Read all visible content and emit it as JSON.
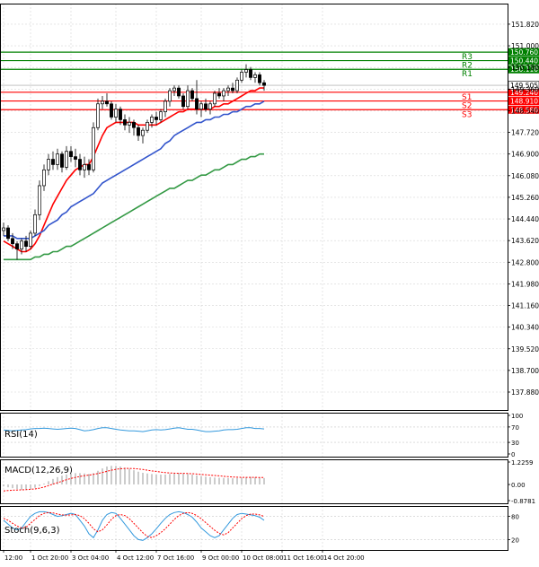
{
  "chart_data": {
    "type": "candlestick",
    "price_axis": {
      "ylim": [
        137.2,
        152.6
      ],
      "ticks": [
        "151.820",
        "151.000",
        "150.180",
        "149.360",
        "148.540",
        "147.720",
        "146.900",
        "146.080",
        "145.260",
        "144.440",
        "143.620",
        "142.800",
        "141.980",
        "141.160",
        "140.340",
        "139.520",
        "138.700",
        "137.880"
      ],
      "tick_values": [
        151.82,
        151.0,
        150.18,
        149.36,
        148.54,
        147.72,
        146.9,
        146.08,
        145.26,
        144.44,
        143.62,
        142.8,
        141.98,
        141.16,
        140.34,
        139.52,
        138.7,
        137.88
      ],
      "grid": true
    },
    "time_axis": {
      "labels": [
        "12:00",
        "1 Oct 20:00",
        "3 Oct 04:00",
        "4 Oct 12:00",
        "7 Oct 16:00",
        "9 Oct 00:00",
        "10 Oct 08:00",
        "11 Oct 16:00",
        "14 Oct 20:00"
      ],
      "label_bar_index": [
        0,
        6,
        15,
        25,
        34,
        44,
        53,
        62,
        71
      ]
    },
    "levels": [
      {
        "name": "R3",
        "value": 150.76,
        "label": "150.760",
        "color": "#008000"
      },
      {
        "name": "R2",
        "value": 150.44,
        "label": "150.440",
        "color": "#008000"
      },
      {
        "name": "R1",
        "value": 150.11,
        "label": "150.110",
        "color": "#008000"
      },
      {
        "name": "S1",
        "value": 149.24,
        "label": "149.240",
        "color": "#ff0000"
      },
      {
        "name": "S2",
        "value": 148.91,
        "label": "148.910",
        "color": "#ff0000"
      },
      {
        "name": "S3",
        "value": 148.58,
        "label": "148.580",
        "color": "#ff0000"
      }
    ],
    "current_price": {
      "value": 149.505,
      "label": "149.505"
    },
    "candles": [
      [
        144.0,
        144.3,
        143.8,
        144.1
      ],
      [
        144.1,
        144.2,
        143.6,
        143.7
      ],
      [
        143.7,
        143.9,
        143.3,
        143.5
      ],
      [
        143.5,
        143.6,
        142.9,
        143.3
      ],
      [
        143.3,
        143.7,
        143.1,
        143.6
      ],
      [
        143.6,
        143.8,
        143.2,
        143.4
      ],
      [
        143.4,
        144.0,
        143.3,
        143.9
      ],
      [
        143.9,
        144.8,
        143.8,
        144.6
      ],
      [
        144.6,
        145.9,
        144.4,
        145.7
      ],
      [
        145.7,
        146.5,
        145.5,
        146.3
      ],
      [
        146.3,
        146.9,
        146.1,
        146.7
      ],
      [
        146.7,
        147.0,
        146.3,
        146.5
      ],
      [
        146.5,
        147.1,
        146.3,
        146.9
      ],
      [
        146.9,
        147.0,
        146.2,
        146.4
      ],
      [
        146.4,
        147.2,
        146.3,
        147.0
      ],
      [
        147.0,
        147.2,
        146.6,
        146.8
      ],
      [
        146.8,
        147.1,
        146.4,
        146.7
      ],
      [
        146.7,
        146.9,
        146.1,
        146.3
      ],
      [
        146.3,
        146.8,
        146.0,
        146.5
      ],
      [
        146.5,
        146.7,
        146.1,
        146.3
      ],
      [
        146.3,
        148.1,
        146.2,
        147.9
      ],
      [
        147.9,
        149.0,
        147.8,
        148.8
      ],
      [
        148.8,
        149.1,
        148.6,
        148.9
      ],
      [
        148.9,
        149.2,
        148.7,
        148.8
      ],
      [
        148.8,
        148.9,
        148.2,
        148.3
      ],
      [
        148.3,
        148.8,
        148.1,
        148.6
      ],
      [
        148.6,
        148.7,
        148.0,
        148.2
      ],
      [
        148.2,
        148.4,
        147.8,
        148.0
      ],
      [
        148.0,
        148.3,
        147.7,
        148.1
      ],
      [
        148.1,
        148.2,
        147.6,
        147.9
      ],
      [
        147.9,
        148.0,
        147.4,
        147.6
      ],
      [
        147.6,
        147.9,
        147.3,
        147.8
      ],
      [
        147.8,
        148.2,
        147.7,
        148.1
      ],
      [
        148.1,
        148.4,
        147.9,
        148.3
      ],
      [
        148.3,
        148.5,
        148.0,
        148.2
      ],
      [
        148.2,
        148.6,
        148.1,
        148.5
      ],
      [
        148.5,
        149.0,
        148.3,
        148.9
      ],
      [
        148.9,
        149.4,
        148.7,
        149.3
      ],
      [
        149.3,
        149.5,
        149.1,
        149.4
      ],
      [
        149.4,
        149.5,
        149.0,
        149.1
      ],
      [
        149.1,
        149.2,
        148.6,
        148.7
      ],
      [
        148.7,
        149.5,
        148.6,
        149.3
      ],
      [
        149.3,
        149.4,
        148.9,
        149.0
      ],
      [
        149.0,
        149.7,
        148.4,
        148.6
      ],
      [
        148.6,
        148.9,
        148.3,
        148.8
      ],
      [
        148.8,
        149.0,
        148.5,
        148.6
      ],
      [
        148.6,
        148.9,
        148.4,
        148.8
      ],
      [
        148.8,
        149.3,
        148.7,
        149.2
      ],
      [
        149.2,
        149.4,
        149.0,
        149.1
      ],
      [
        149.1,
        149.4,
        148.9,
        149.3
      ],
      [
        149.3,
        149.5,
        149.1,
        149.4
      ],
      [
        149.4,
        149.6,
        149.2,
        149.3
      ],
      [
        149.3,
        149.8,
        149.2,
        149.7
      ],
      [
        149.7,
        150.1,
        149.6,
        150.0
      ],
      [
        150.0,
        150.3,
        149.8,
        150.1
      ],
      [
        150.1,
        150.2,
        149.7,
        149.8
      ],
      [
        149.8,
        150.0,
        149.6,
        149.9
      ],
      [
        149.9,
        150.0,
        149.5,
        149.6
      ],
      [
        149.6,
        149.7,
        149.3,
        149.5
      ]
    ],
    "ma_series": [
      {
        "color": "#ff0000",
        "values": [
          143.6,
          143.5,
          143.4,
          143.3,
          143.2,
          143.2,
          143.3,
          143.5,
          143.8,
          144.2,
          144.6,
          145.0,
          145.3,
          145.6,
          145.9,
          146.1,
          146.3,
          146.4,
          146.5,
          146.5,
          146.8,
          147.2,
          147.6,
          147.9,
          148.0,
          148.1,
          148.1,
          148.1,
          148.1,
          148.1,
          148.0,
          148.0,
          148.0,
          148.0,
          148.0,
          148.1,
          148.2,
          148.3,
          148.4,
          148.5,
          148.5,
          148.6,
          148.6,
          148.6,
          148.6,
          148.6,
          148.6,
          148.7,
          148.7,
          148.8,
          148.8,
          148.9,
          149.0,
          149.1,
          149.2,
          149.3,
          149.3,
          149.4,
          149.4
        ]
      },
      {
        "color": "#3355cc",
        "values": [
          143.8,
          143.8,
          143.8,
          143.7,
          143.7,
          143.7,
          143.7,
          143.8,
          143.9,
          144.0,
          144.2,
          144.3,
          144.4,
          144.6,
          144.7,
          144.9,
          145.0,
          145.1,
          145.2,
          145.3,
          145.4,
          145.6,
          145.8,
          145.9,
          146.0,
          146.1,
          146.2,
          146.3,
          146.4,
          146.5,
          146.6,
          146.7,
          146.8,
          146.9,
          147.0,
          147.1,
          147.3,
          147.4,
          147.6,
          147.7,
          147.8,
          147.9,
          148.0,
          148.1,
          148.1,
          148.2,
          148.2,
          148.3,
          148.3,
          148.4,
          148.4,
          148.5,
          148.5,
          148.6,
          148.7,
          148.7,
          148.8,
          148.8,
          148.9
        ]
      },
      {
        "color": "#339944",
        "values": [
          142.9,
          142.9,
          142.9,
          142.9,
          142.9,
          142.9,
          142.9,
          143.0,
          143.0,
          143.1,
          143.1,
          143.2,
          143.2,
          143.3,
          143.4,
          143.4,
          143.5,
          143.6,
          143.7,
          143.8,
          143.9,
          144.0,
          144.1,
          144.2,
          144.3,
          144.4,
          144.5,
          144.6,
          144.7,
          144.8,
          144.9,
          145.0,
          145.1,
          145.2,
          145.3,
          145.4,
          145.5,
          145.6,
          145.6,
          145.7,
          145.8,
          145.9,
          145.9,
          146.0,
          146.1,
          146.1,
          146.2,
          146.3,
          146.3,
          146.4,
          146.5,
          146.5,
          146.6,
          146.7,
          146.7,
          146.8,
          146.8,
          146.9,
          146.9
        ]
      }
    ],
    "panels": {
      "rsi": {
        "name": "RSI(14)",
        "ticks": [
          "100",
          "70",
          "30",
          "0"
        ],
        "levels": [
          70,
          30
        ],
        "color": "#3399dd",
        "values": [
          62,
          61,
          60,
          61,
          62,
          63,
          65,
          66,
          66,
          67,
          66,
          65,
          64,
          65,
          66,
          67,
          66,
          63,
          60,
          61,
          63,
          66,
          68,
          68,
          66,
          64,
          62,
          61,
          60,
          60,
          59,
          58,
          60,
          62,
          63,
          62,
          63,
          65,
          67,
          68,
          66,
          64,
          64,
          62,
          60,
          58,
          58,
          59,
          60,
          62,
          63,
          63,
          64,
          66,
          68,
          68,
          66,
          66,
          65
        ]
      },
      "macd": {
        "name": "MACD(12,26,9)",
        "ticks": [
          "1.2259",
          "0.00",
          "-0.8781"
        ],
        "ylim": [
          -0.8781,
          1.2259
        ],
        "hist_color": "#999999",
        "signal_color": "#ff0000",
        "histogram": [
          -0.1,
          -0.15,
          -0.2,
          -0.25,
          -0.28,
          -0.3,
          -0.25,
          -0.18,
          -0.08,
          0.05,
          0.18,
          0.3,
          0.4,
          0.48,
          0.55,
          0.6,
          0.62,
          0.62,
          0.6,
          0.57,
          0.62,
          0.75,
          0.88,
          0.98,
          1.02,
          1.02,
          0.98,
          0.92,
          0.85,
          0.78,
          0.7,
          0.64,
          0.6,
          0.57,
          0.55,
          0.54,
          0.55,
          0.58,
          0.6,
          0.62,
          0.6,
          0.58,
          0.54,
          0.5,
          0.46,
          0.43,
          0.4,
          0.38,
          0.37,
          0.36,
          0.35,
          0.34,
          0.35,
          0.37,
          0.4,
          0.41,
          0.4,
          0.38,
          0.35
        ],
        "signal": [
          -0.35,
          -0.33,
          -0.31,
          -0.3,
          -0.29,
          -0.28,
          -0.26,
          -0.24,
          -0.2,
          -0.14,
          -0.06,
          0.02,
          0.1,
          0.18,
          0.26,
          0.33,
          0.39,
          0.44,
          0.48,
          0.51,
          0.55,
          0.6,
          0.66,
          0.72,
          0.78,
          0.83,
          0.86,
          0.88,
          0.88,
          0.87,
          0.85,
          0.82,
          0.78,
          0.74,
          0.71,
          0.68,
          0.65,
          0.63,
          0.62,
          0.61,
          0.61,
          0.6,
          0.59,
          0.57,
          0.55,
          0.53,
          0.51,
          0.49,
          0.47,
          0.45,
          0.43,
          0.41,
          0.4,
          0.39,
          0.39,
          0.39,
          0.39,
          0.38,
          0.38
        ]
      },
      "stoch": {
        "name": "Stoch(9,6,3)",
        "ticks": [
          "80",
          "20"
        ],
        "levels": [
          80,
          20
        ],
        "main_color": "#3399dd",
        "signal_color": "#ff0000",
        "main": [
          70,
          60,
          50,
          45,
          50,
          65,
          80,
          88,
          92,
          92,
          90,
          85,
          80,
          82,
          85,
          88,
          85,
          70,
          55,
          35,
          25,
          45,
          70,
          85,
          90,
          88,
          75,
          60,
          45,
          30,
          20,
          18,
          25,
          35,
          48,
          62,
          75,
          85,
          90,
          92,
          90,
          85,
          78,
          65,
          50,
          40,
          30,
          25,
          30,
          45,
          60,
          75,
          85,
          88,
          86,
          84,
          82,
          78,
          70
        ],
        "signal": [
          75,
          70,
          62,
          55,
          50,
          52,
          62,
          72,
          82,
          88,
          90,
          89,
          86,
          84,
          83,
          84,
          85,
          82,
          74,
          62,
          48,
          40,
          45,
          58,
          72,
          82,
          85,
          82,
          74,
          62,
          50,
          38,
          28,
          25,
          30,
          38,
          48,
          60,
          72,
          82,
          88,
          90,
          88,
          82,
          74,
          64,
          54,
          44,
          36,
          32,
          38,
          50,
          62,
          74,
          82,
          86,
          86,
          84,
          80
        ]
      }
    }
  }
}
